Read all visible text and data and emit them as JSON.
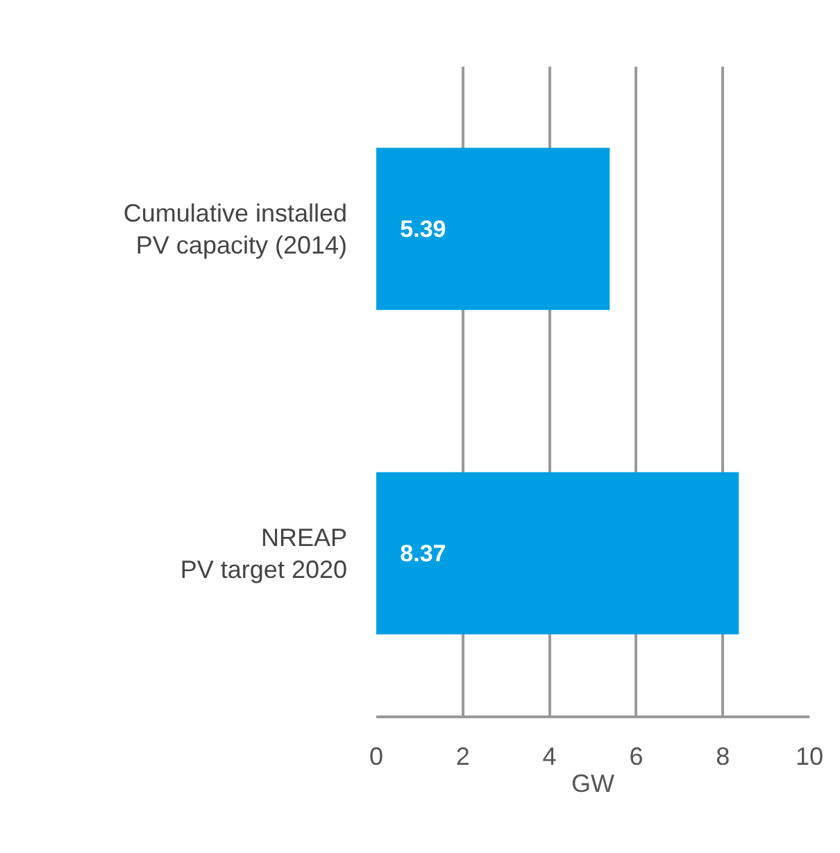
{
  "chart_data": {
    "type": "bar",
    "orientation": "horizontal",
    "xlabel": "GW",
    "categories": [
      "Cumulative installed\nPV capacity (2014)",
      "NREAP\nPV target 2020"
    ],
    "values": [
      5.39,
      8.37
    ],
    "color": "#009fe3",
    "xlim": [
      0,
      10
    ],
    "xticks": [
      0,
      2,
      4,
      6,
      8,
      10
    ],
    "grid": "x",
    "data_labels": true,
    "legend": false
  }
}
